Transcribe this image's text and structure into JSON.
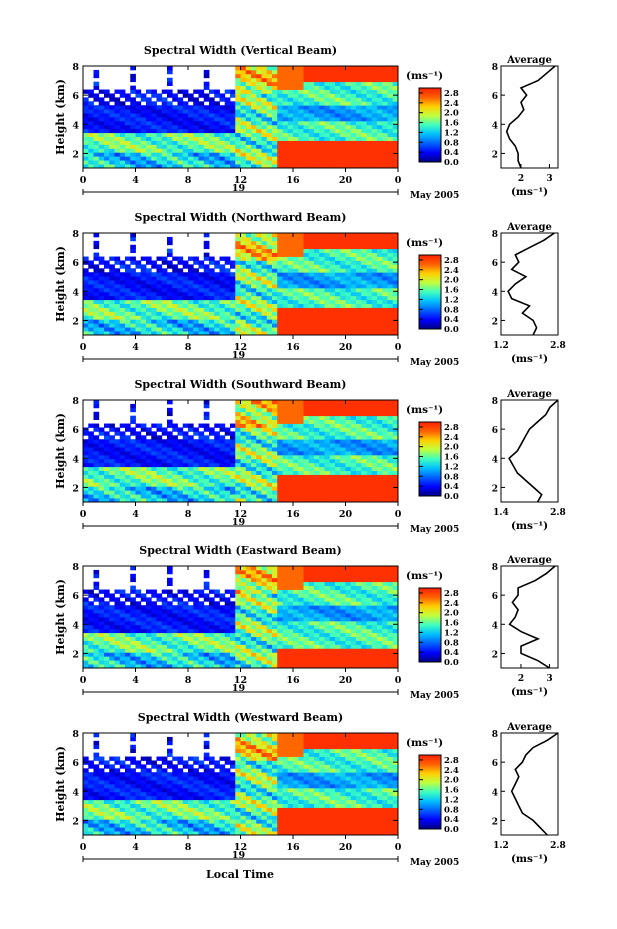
{
  "figure": {
    "date_label": "May 2005",
    "xlabel": "Local Time",
    "day_label": "19",
    "colorbar_unit": "(ms⁻¹)",
    "avg_title": "Average",
    "avg_unit": "(ms⁻¹)",
    "ylabel": "Height (km)",
    "colormap": [
      "#00007f",
      "#0000ff",
      "#0060ff",
      "#00bfff",
      "#3fffbf",
      "#bfff3f",
      "#ffcf00",
      "#ff6000",
      "#ff2000"
    ]
  },
  "chart_data": [
    {
      "type": "heatmap",
      "title": "Spectral Width (Vertical Beam)",
      "xlabel": "Local Time",
      "ylabel": "Height (km)",
      "x_ticks": [
        "0",
        "4",
        "8",
        "12",
        "16",
        "20",
        "0"
      ],
      "y_ticks": [
        "2",
        "4",
        "6",
        "8"
      ],
      "xlim": [
        0,
        24
      ],
      "ylim": [
        1,
        8
      ],
      "colorbar": {
        "label": "(ms⁻¹)",
        "ticks": [
          "0.0",
          "0.4",
          "0.8",
          "1.2",
          "1.6",
          "2.0",
          "2.4",
          "2.8"
        ],
        "range": [
          0.0,
          3.0
        ]
      },
      "average_profile": {
        "title": "Average",
        "xlabel": "(ms⁻¹)",
        "x_ticks": [
          "2",
          "3"
        ],
        "xlim": [
          1.3,
          3.3
        ],
        "height": [
          1.0,
          1.5,
          2.0,
          2.5,
          3.0,
          3.5,
          4.0,
          4.5,
          5.0,
          5.5,
          6.0,
          6.5,
          7.0,
          7.5,
          8.0
        ],
        "width": [
          2.0,
          1.9,
          1.9,
          1.8,
          1.6,
          1.5,
          1.6,
          1.9,
          2.1,
          2.0,
          2.2,
          2.0,
          2.6,
          2.9,
          3.2
        ]
      }
    },
    {
      "type": "heatmap",
      "title": "Spectral Width (Northward Beam)",
      "xlabel": "Local Time",
      "ylabel": "Height (km)",
      "x_ticks": [
        "0",
        "4",
        "8",
        "12",
        "16",
        "20",
        "0"
      ],
      "y_ticks": [
        "2",
        "4",
        "6",
        "8"
      ],
      "xlim": [
        0,
        24
      ],
      "ylim": [
        1,
        8
      ],
      "colorbar": {
        "label": "(ms⁻¹)",
        "ticks": [
          "0.0",
          "0.4",
          "0.8",
          "1.2",
          "1.6",
          "2.0",
          "2.4",
          "2.8"
        ],
        "range": [
          0.0,
          3.0
        ]
      },
      "average_profile": {
        "title": "Average",
        "xlabel": "(ms⁻¹)",
        "x_ticks": [
          "1.2",
          "2.8"
        ],
        "xlim": [
          1.2,
          2.8
        ],
        "height": [
          1.0,
          1.5,
          2.0,
          2.5,
          3.0,
          3.5,
          4.0,
          4.5,
          5.0,
          5.5,
          6.0,
          6.5,
          7.0,
          7.5,
          8.0
        ],
        "width": [
          2.1,
          2.2,
          2.1,
          1.8,
          2.0,
          1.5,
          1.4,
          1.6,
          1.9,
          1.5,
          1.7,
          1.6,
          2.0,
          2.4,
          2.7
        ]
      }
    },
    {
      "type": "heatmap",
      "title": "Spectral Width (Southward Beam)",
      "xlabel": "Local Time",
      "ylabel": "Height (km)",
      "x_ticks": [
        "0",
        "4",
        "8",
        "12",
        "16",
        "20",
        "0"
      ],
      "y_ticks": [
        "2",
        "4",
        "6",
        "8"
      ],
      "xlim": [
        0,
        24
      ],
      "ylim": [
        1,
        8
      ],
      "colorbar": {
        "label": "(ms⁻¹)",
        "ticks": [
          "0.0",
          "0.4",
          "0.8",
          "1.2",
          "1.6",
          "2.0",
          "2.4",
          "2.8"
        ],
        "range": [
          0.0,
          3.0
        ]
      },
      "average_profile": {
        "title": "Average",
        "xlabel": "(ms⁻¹)",
        "x_ticks": [
          "1.4",
          "2.8"
        ],
        "xlim": [
          1.4,
          2.8
        ],
        "height": [
          1.0,
          1.5,
          2.0,
          2.5,
          3.0,
          3.5,
          4.0,
          4.5,
          5.0,
          5.5,
          6.0,
          6.5,
          7.0,
          7.5,
          8.0
        ],
        "width": [
          2.3,
          2.4,
          2.2,
          2.0,
          1.8,
          1.7,
          1.6,
          1.8,
          1.9,
          2.0,
          2.1,
          2.3,
          2.5,
          2.6,
          2.8
        ]
      }
    },
    {
      "type": "heatmap",
      "title": "Spectral Width (Eastward Beam)",
      "xlabel": "Local Time",
      "ylabel": "Height (km)",
      "x_ticks": [
        "0",
        "4",
        "8",
        "12",
        "16",
        "20",
        "0"
      ],
      "y_ticks": [
        "2",
        "4",
        "6",
        "8"
      ],
      "xlim": [
        0,
        24
      ],
      "ylim": [
        1,
        8
      ],
      "colorbar": {
        "label": "(ms⁻¹)",
        "ticks": [
          "0.0",
          "0.4",
          "0.8",
          "1.2",
          "1.6",
          "2.0",
          "2.4",
          "2.8"
        ],
        "range": [
          0.0,
          3.0
        ]
      },
      "average_profile": {
        "title": "Average",
        "xlabel": "(ms⁻¹)",
        "x_ticks": [
          "2",
          "3"
        ],
        "xlim": [
          1.3,
          3.3
        ],
        "height": [
          1.0,
          1.5,
          2.0,
          2.5,
          3.0,
          3.5,
          4.0,
          4.5,
          5.0,
          5.5,
          6.0,
          6.5,
          7.0,
          7.5,
          8.0
        ],
        "width": [
          3.0,
          2.6,
          2.0,
          2.0,
          2.6,
          2.0,
          1.6,
          1.8,
          1.9,
          1.7,
          1.9,
          1.9,
          2.5,
          2.9,
          3.2
        ]
      }
    },
    {
      "type": "heatmap",
      "title": "Spectral Width (Westward Beam)",
      "xlabel": "Local Time",
      "ylabel": "Height (km)",
      "x_ticks": [
        "0",
        "4",
        "8",
        "12",
        "16",
        "20",
        "0"
      ],
      "y_ticks": [
        "2",
        "4",
        "6",
        "8"
      ],
      "xlim": [
        0,
        24
      ],
      "ylim": [
        1,
        8
      ],
      "colorbar": {
        "label": "(ms⁻¹)",
        "ticks": [
          "0.0",
          "0.4",
          "0.8",
          "1.2",
          "1.6",
          "2.0",
          "2.4",
          "2.8"
        ],
        "range": [
          0.0,
          3.0
        ]
      },
      "average_profile": {
        "title": "Average",
        "xlabel": "(ms⁻¹)",
        "x_ticks": [
          "1.2",
          "2.8"
        ],
        "xlim": [
          1.2,
          2.8
        ],
        "height": [
          1.0,
          1.5,
          2.0,
          2.5,
          3.0,
          3.5,
          4.0,
          4.5,
          5.0,
          5.5,
          6.0,
          6.5,
          7.0,
          7.5,
          8.0
        ],
        "width": [
          2.5,
          2.3,
          2.1,
          1.8,
          1.7,
          1.6,
          1.5,
          1.6,
          1.7,
          1.6,
          1.8,
          1.9,
          2.1,
          2.5,
          2.8
        ]
      }
    }
  ]
}
